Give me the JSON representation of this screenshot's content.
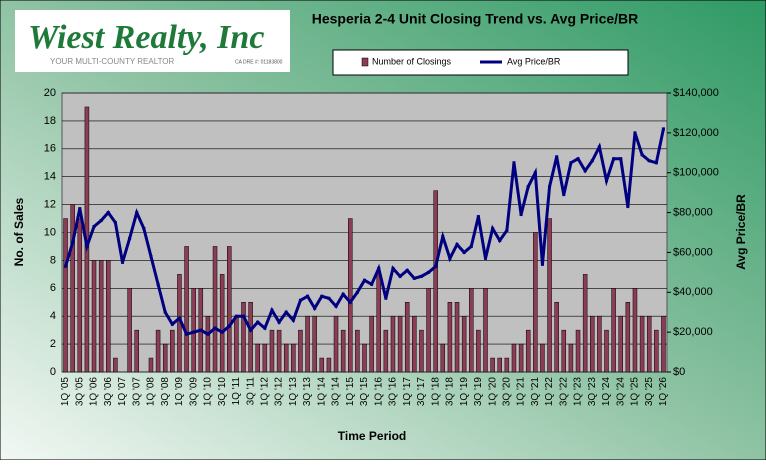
{
  "logo": {
    "name": "Wiest Realty, Inc",
    "tagline": "YOUR MULTI-COUNTY REALTOR",
    "license": "CA DRE #: 01183800"
  },
  "chart_data": {
    "type": "bar_line",
    "title": "Hesperia  2-4 Unit Closing Trend vs. Avg Price/BR",
    "x_label": "Time Period",
    "y_label": "No. of Sales",
    "y2_label": "Avg Price/BR",
    "categories": [
      "1Q '05",
      null,
      "3Q '05",
      null,
      "1Q '06",
      null,
      "3Q '06",
      null,
      "1Q '07",
      null,
      "3Q '07",
      null,
      "1Q '08",
      null,
      "3Q '08",
      null,
      "1Q '09",
      null,
      "3Q '09",
      null,
      "1Q '10",
      null,
      "3Q '10",
      null,
      "1Q '11",
      null,
      "3Q '11",
      null,
      "1Q '12",
      null,
      "3Q '12",
      null,
      "1Q '13",
      null,
      "3Q '13",
      null,
      "1Q '14",
      null,
      "3Q '14",
      null,
      "1Q '15",
      null,
      "3Q '15",
      null,
      "1Q '16",
      null,
      "3Q '16",
      null,
      "1Q '17",
      null,
      "3Q '17",
      null,
      "1Q '18",
      null,
      "3Q '18",
      null,
      "1Q '19",
      null,
      "3Q '19",
      null,
      "1Q '20",
      null,
      "3Q '20",
      null,
      "1Q '21",
      null,
      "3Q '21",
      null,
      "1Q '22",
      null,
      "3Q '22",
      null,
      "1Q '23",
      null,
      "3Q '23",
      null,
      "1Q '24",
      null,
      "3Q '24",
      null,
      "1Q '25",
      null,
      "3Q '25",
      null,
      "1Q '26"
    ],
    "series": [
      {
        "name": "Number of Closings",
        "color": "#8c3d55",
        "values": [
          11,
          12,
          11,
          19,
          8,
          8,
          8,
          1,
          0,
          6,
          3,
          0,
          1,
          3,
          2,
          3,
          7,
          9,
          6,
          6,
          4,
          9,
          7,
          9,
          4,
          5,
          5,
          2,
          2,
          3,
          3,
          2,
          2,
          3,
          4,
          4,
          1,
          1,
          4,
          3,
          11,
          3,
          2,
          4,
          7,
          3,
          4,
          4,
          5,
          4,
          3,
          6,
          13,
          2,
          5,
          5,
          4,
          6,
          3,
          6,
          1,
          1,
          1,
          2,
          2,
          3,
          10,
          2,
          11,
          5,
          3,
          2,
          3,
          7,
          4,
          4,
          3,
          6,
          4,
          5,
          6,
          4,
          4,
          3,
          4
        ]
      },
      {
        "name": "Avg Price/BR",
        "color": "#000080",
        "axis": "y2",
        "values": [
          53000,
          65000,
          82000,
          63000,
          73000,
          76000,
          80000,
          75000,
          55000,
          67000,
          80000,
          72000,
          58000,
          44000,
          30000,
          24000,
          27000,
          19000,
          20000,
          21000,
          19000,
          22000,
          20000,
          23000,
          28000,
          28000,
          21000,
          25000,
          22000,
          31000,
          25000,
          30000,
          26000,
          36000,
          38000,
          32000,
          38000,
          37000,
          33000,
          39000,
          35000,
          40000,
          46000,
          44000,
          52000,
          37000,
          52000,
          48000,
          51000,
          47000,
          48000,
          50000,
          53000,
          68000,
          57000,
          64000,
          60000,
          63000,
          78000,
          57000,
          72000,
          66000,
          71000,
          105000,
          79000,
          93000,
          100000,
          54000,
          93000,
          108000,
          89000,
          105000,
          107000,
          101000,
          106000,
          113000,
          96000,
          107000,
          107000,
          83000,
          120000,
          109000,
          106000,
          105000,
          122000
        ]
      }
    ],
    "ylim": [
      0,
      20
    ],
    "yticks": [
      0,
      2,
      4,
      6,
      8,
      10,
      12,
      14,
      16,
      18,
      20
    ],
    "y2lim": [
      0,
      140000
    ],
    "y2ticks": [
      {
        "value": 0,
        "label": "$0"
      },
      {
        "value": 20000,
        "label": "$20,000"
      },
      {
        "value": 40000,
        "label": "$40,000"
      },
      {
        "value": 60000,
        "label": "$60,000"
      },
      {
        "value": 80000,
        "label": "$80,000"
      },
      {
        "value": 100000,
        "label": "$100,000"
      },
      {
        "value": 120000,
        "label": "$120,000"
      },
      {
        "value": 140000,
        "label": "$140,000"
      }
    ],
    "grid": true
  }
}
